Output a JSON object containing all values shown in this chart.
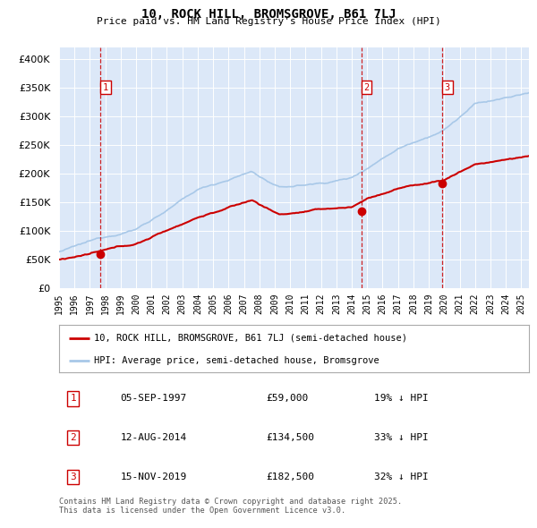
{
  "title": "10, ROCK HILL, BROMSGROVE, B61 7LJ",
  "subtitle": "Price paid vs. HM Land Registry's House Price Index (HPI)",
  "hpi_label": "HPI: Average price, semi-detached house, Bromsgrove",
  "price_label": "10, ROCK HILL, BROMSGROVE, B61 7LJ (semi-detached house)",
  "footer": "Contains HM Land Registry data © Crown copyright and database right 2025.\nThis data is licensed under the Open Government Licence v3.0.",
  "transactions": [
    {
      "num": 1,
      "date": "05-SEP-1997",
      "price": 59000,
      "pct": "19%",
      "dir": "↓"
    },
    {
      "num": 2,
      "date": "12-AUG-2014",
      "price": 134500,
      "pct": "33%",
      "dir": "↓"
    },
    {
      "num": 3,
      "date": "15-NOV-2019",
      "price": 182500,
      "pct": "32%",
      "dir": "↓"
    }
  ],
  "hpi_color": "#a8c8e8",
  "price_color": "#cc0000",
  "vline_color": "#cc0000",
  "dot_color": "#cc0000",
  "plot_bg": "#dce8f8",
  "grid_color": "#ffffff",
  "ylim": [
    0,
    420000
  ],
  "yticks": [
    0,
    50000,
    100000,
    150000,
    200000,
    250000,
    300000,
    350000,
    400000
  ],
  "xlim_start": 1995.0,
  "xlim_end": 2025.5
}
